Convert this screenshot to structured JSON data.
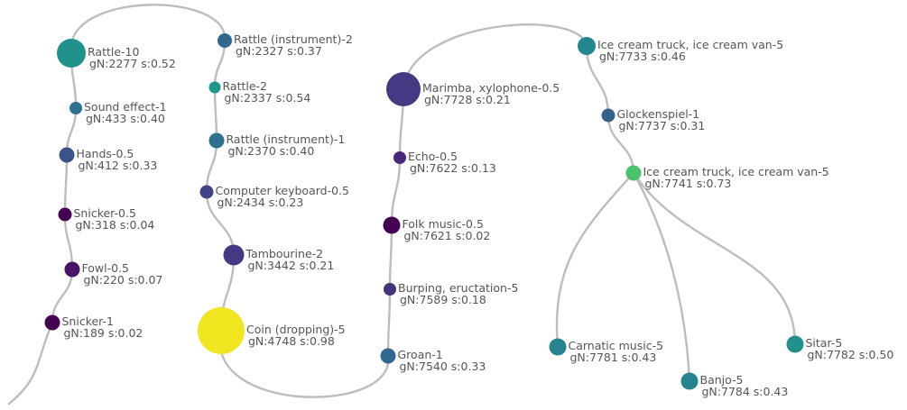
{
  "nodes": [
    {
      "id": "n1",
      "name": "Rattle-10",
      "stats": "gN:2277 s:0.52",
      "color": "#21918c"
    },
    {
      "id": "n2",
      "name": "Sound effect-1",
      "stats": "gN:433 s:0.40",
      "color": "#2c728e"
    },
    {
      "id": "n3",
      "name": "Hands-0.5",
      "stats": "gN:412 s:0.33",
      "color": "#3b528b"
    },
    {
      "id": "n4",
      "name": "Snicker-0.5",
      "stats": "gN:318 s:0.04",
      "color": "#440154"
    },
    {
      "id": "n5",
      "name": "Fowl-0.5",
      "stats": "gN:220 s:0.07",
      "color": "#471365"
    },
    {
      "id": "n6",
      "name": "Snicker-1",
      "stats": "gN:189 s:0.02",
      "color": "#440154"
    },
    {
      "id": "n7",
      "name": "Rattle (instrument)-2",
      "stats": "gN:2327 s:0.37",
      "color": "#31688e"
    },
    {
      "id": "n8",
      "name": "Rattle-2",
      "stats": "gN:2337 s:0.54",
      "color": "#1f988b"
    },
    {
      "id": "n9",
      "name": "Rattle (instrument)-1",
      "stats": "gN:2370 s:0.40",
      "color": "#2c728e"
    },
    {
      "id": "n10",
      "name": "Computer keyboard-0.5",
      "stats": "gN:2434 s:0.23",
      "color": "#414487"
    },
    {
      "id": "n11",
      "name": "Tambourine-2",
      "stats": "gN:3442 s:0.21",
      "color": "#443983"
    },
    {
      "id": "n12",
      "name": "Coin (dropping)-5",
      "stats": "gN:4748 s:0.98",
      "color": "#f0e51f"
    },
    {
      "id": "n13",
      "name": "Marimba, xylophone-0.5",
      "stats": "gN:7728 s:0.21",
      "color": "#443983"
    },
    {
      "id": "n14",
      "name": "Echo-0.5",
      "stats": "gN:7622 s:0.13",
      "color": "#482878"
    },
    {
      "id": "n15",
      "name": "Folk music-0.5",
      "stats": "gN:7621 s:0.02",
      "color": "#440154"
    },
    {
      "id": "n16",
      "name": "Burping, eructation-5",
      "stats": "gN:7589 s:0.18",
      "color": "#46337e"
    },
    {
      "id": "n17",
      "name": "Groan-1",
      "stats": "gN:7540 s:0.33",
      "color": "#31688e"
    },
    {
      "id": "n18",
      "name": "Ice cream truck, ice cream van-5",
      "stats": "gN:7733 s:0.46",
      "color": "#23888e"
    },
    {
      "id": "n19",
      "name": "Glockenspiel-1",
      "stats": "gN:7737 s:0.31",
      "color": "#33638d"
    },
    {
      "id": "n20",
      "name": "Ice cream truck, ice cream van-5",
      "stats": "gN:7741 s:0.73",
      "color": "#4ac16d"
    },
    {
      "id": "n21",
      "name": "Carnatic music-5",
      "stats": "gN:7781 s:0.43",
      "color": "#25848e"
    },
    {
      "id": "n22",
      "name": "Banjo-5",
      "stats": "gN:7784 s:0.43",
      "color": "#25848e"
    },
    {
      "id": "n23",
      "name": "Sitar-5",
      "stats": "gN:7782 s:0.50",
      "color": "#21918c"
    }
  ],
  "edges": [
    [
      "n1",
      "n2"
    ],
    [
      "n2",
      "n3"
    ],
    [
      "n3",
      "n4"
    ],
    [
      "n4",
      "n5"
    ],
    [
      "n5",
      "n6"
    ],
    [
      "n1",
      "n7"
    ],
    [
      "n7",
      "n8"
    ],
    [
      "n8",
      "n9"
    ],
    [
      "n9",
      "n10"
    ],
    [
      "n10",
      "n11"
    ],
    [
      "n11",
      "n12"
    ],
    [
      "n12",
      "n17"
    ],
    [
      "n17",
      "n16"
    ],
    [
      "n16",
      "n15"
    ],
    [
      "n15",
      "n14"
    ],
    [
      "n14",
      "n13"
    ],
    [
      "n13",
      "n18"
    ],
    [
      "n18",
      "n19"
    ],
    [
      "n19",
      "n20"
    ],
    [
      "n20",
      "n21"
    ],
    [
      "n20",
      "n22"
    ],
    [
      "n20",
      "n23"
    ]
  ],
  "colors": {
    "edge": "#bdbdbd",
    "label": "#555555"
  }
}
